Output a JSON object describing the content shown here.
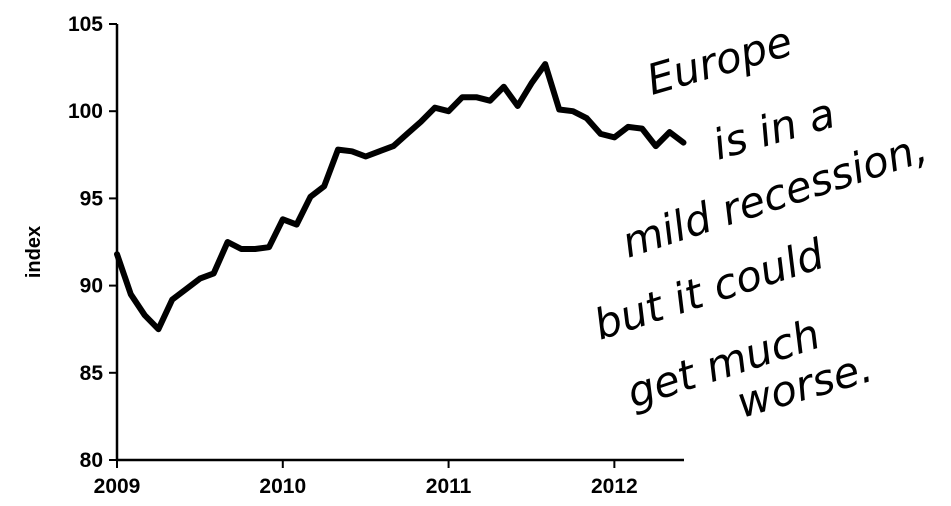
{
  "chart_data": {
    "type": "line",
    "title": "",
    "xlabel": "",
    "ylabel": "index",
    "xlim": [
      2009,
      2012.42
    ],
    "ylim": [
      80,
      105
    ],
    "yticks": [
      80,
      85,
      90,
      95,
      100,
      105
    ],
    "xticks": [
      "2009",
      "2010",
      "2011",
      "2012"
    ],
    "grid": false,
    "series": [
      {
        "color": "#000000",
        "x": [
          2009.0,
          2009.083,
          2009.167,
          2009.25,
          2009.333,
          2009.417,
          2009.5,
          2009.583,
          2009.667,
          2009.75,
          2009.833,
          2009.917,
          2010.0,
          2010.083,
          2010.167,
          2010.25,
          2010.333,
          2010.417,
          2010.5,
          2010.583,
          2010.667,
          2010.75,
          2010.833,
          2010.917,
          2011.0,
          2011.083,
          2011.167,
          2011.25,
          2011.333,
          2011.417,
          2011.5,
          2011.583,
          2011.667,
          2011.75,
          2011.833,
          2011.917,
          2012.0,
          2012.083,
          2012.167,
          2012.25,
          2012.333,
          2012.417
        ],
        "values": [
          91.8,
          89.5,
          88.3,
          87.5,
          89.2,
          89.8,
          90.4,
          90.7,
          92.5,
          92.1,
          92.1,
          92.2,
          93.8,
          93.5,
          95.1,
          95.7,
          97.8,
          97.7,
          97.4,
          97.7,
          98.0,
          98.7,
          99.4,
          100.2,
          100.0,
          100.8,
          100.8,
          100.6,
          101.4,
          100.3,
          101.6,
          102.7,
          100.1,
          100.0,
          99.6,
          98.7,
          98.5,
          99.1,
          99.0,
          98.0,
          98.8,
          98.2
        ]
      }
    ],
    "annotations": [
      {
        "lines": [
          "Europe",
          "is in a",
          "mild recession,",
          "but it could",
          "get much",
          "worse."
        ]
      }
    ]
  }
}
